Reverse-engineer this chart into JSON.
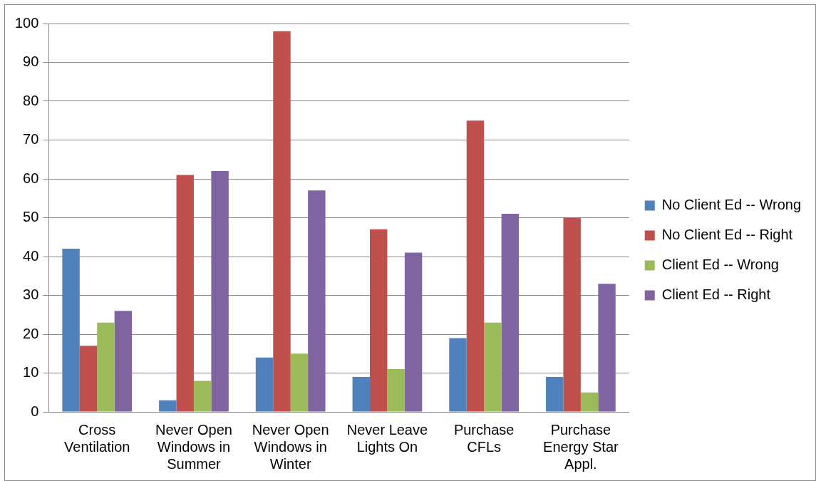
{
  "chart_data": {
    "type": "bar",
    "categories": [
      "Cross Ventilation",
      "Never Open Windows in Summer",
      "Never Open Windows in Winter",
      "Never Leave Lights On",
      "Purchase CFLs",
      "Purchase Energy Star Appl."
    ],
    "series": [
      {
        "name": "No Client Ed -- Wrong",
        "color": "#4f81bd",
        "values": [
          42,
          3,
          14,
          9,
          19,
          9
        ]
      },
      {
        "name": "No Client Ed -- Right",
        "color": "#c0504d",
        "values": [
          17,
          61,
          98,
          47,
          75,
          50
        ]
      },
      {
        "name": "Client Ed -- Wrong",
        "color": "#9bbb59",
        "values": [
          23,
          8,
          15,
          11,
          23,
          5
        ]
      },
      {
        "name": "Client Ed -- Right",
        "color": "#8064a2",
        "values": [
          26,
          62,
          57,
          41,
          51,
          33
        ]
      }
    ],
    "ylim": [
      0,
      100
    ],
    "yticks": [
      0,
      10,
      20,
      30,
      40,
      50,
      60,
      70,
      80,
      90,
      100
    ],
    "grid": "y",
    "legend": "right"
  }
}
